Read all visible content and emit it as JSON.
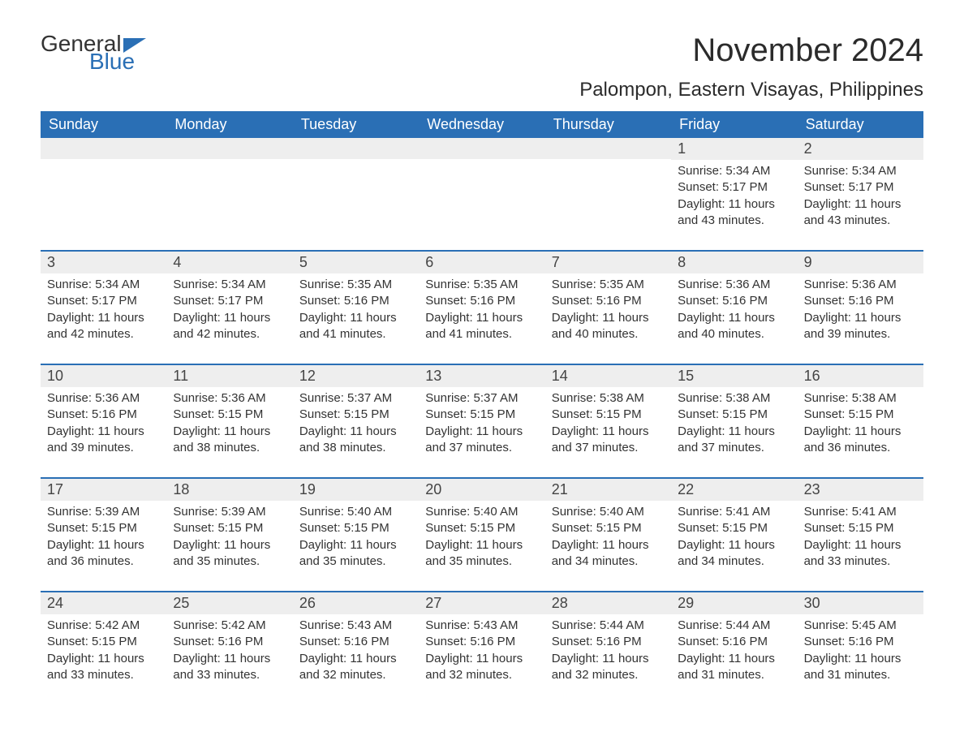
{
  "logo": {
    "word1": "General",
    "word2": "Blue",
    "text_color": "#333333",
    "accent_color": "#2a6fb5"
  },
  "title": "November 2024",
  "location": "Palompon, Eastern Visayas, Philippines",
  "colors": {
    "header_bg": "#2a6fb5",
    "header_text": "#ffffff",
    "daynum_bg": "#eeeeee",
    "body_text": "#333333",
    "divider": "#2a6fb5"
  },
  "fonts": {
    "title_size_pt": 30,
    "location_size_pt": 18,
    "header_size_pt": 14,
    "daynum_size_pt": 14,
    "body_size_pt": 11
  },
  "day_headers": [
    "Sunday",
    "Monday",
    "Tuesday",
    "Wednesday",
    "Thursday",
    "Friday",
    "Saturday"
  ],
  "labels": {
    "sunrise": "Sunrise:",
    "sunset": "Sunset:",
    "daylight": "Daylight:"
  },
  "weeks": [
    [
      {
        "blank": true
      },
      {
        "blank": true
      },
      {
        "blank": true
      },
      {
        "blank": true
      },
      {
        "blank": true
      },
      {
        "n": "1",
        "sunrise": "5:34 AM",
        "sunset": "5:17 PM",
        "daylight": "11 hours and 43 minutes."
      },
      {
        "n": "2",
        "sunrise": "5:34 AM",
        "sunset": "5:17 PM",
        "daylight": "11 hours and 43 minutes."
      }
    ],
    [
      {
        "n": "3",
        "sunrise": "5:34 AM",
        "sunset": "5:17 PM",
        "daylight": "11 hours and 42 minutes."
      },
      {
        "n": "4",
        "sunrise": "5:34 AM",
        "sunset": "5:17 PM",
        "daylight": "11 hours and 42 minutes."
      },
      {
        "n": "5",
        "sunrise": "5:35 AM",
        "sunset": "5:16 PM",
        "daylight": "11 hours and 41 minutes."
      },
      {
        "n": "6",
        "sunrise": "5:35 AM",
        "sunset": "5:16 PM",
        "daylight": "11 hours and 41 minutes."
      },
      {
        "n": "7",
        "sunrise": "5:35 AM",
        "sunset": "5:16 PM",
        "daylight": "11 hours and 40 minutes."
      },
      {
        "n": "8",
        "sunrise": "5:36 AM",
        "sunset": "5:16 PM",
        "daylight": "11 hours and 40 minutes."
      },
      {
        "n": "9",
        "sunrise": "5:36 AM",
        "sunset": "5:16 PM",
        "daylight": "11 hours and 39 minutes."
      }
    ],
    [
      {
        "n": "10",
        "sunrise": "5:36 AM",
        "sunset": "5:16 PM",
        "daylight": "11 hours and 39 minutes."
      },
      {
        "n": "11",
        "sunrise": "5:36 AM",
        "sunset": "5:15 PM",
        "daylight": "11 hours and 38 minutes."
      },
      {
        "n": "12",
        "sunrise": "5:37 AM",
        "sunset": "5:15 PM",
        "daylight": "11 hours and 38 minutes."
      },
      {
        "n": "13",
        "sunrise": "5:37 AM",
        "sunset": "5:15 PM",
        "daylight": "11 hours and 37 minutes."
      },
      {
        "n": "14",
        "sunrise": "5:38 AM",
        "sunset": "5:15 PM",
        "daylight": "11 hours and 37 minutes."
      },
      {
        "n": "15",
        "sunrise": "5:38 AM",
        "sunset": "5:15 PM",
        "daylight": "11 hours and 37 minutes."
      },
      {
        "n": "16",
        "sunrise": "5:38 AM",
        "sunset": "5:15 PM",
        "daylight": "11 hours and 36 minutes."
      }
    ],
    [
      {
        "n": "17",
        "sunrise": "5:39 AM",
        "sunset": "5:15 PM",
        "daylight": "11 hours and 36 minutes."
      },
      {
        "n": "18",
        "sunrise": "5:39 AM",
        "sunset": "5:15 PM",
        "daylight": "11 hours and 35 minutes."
      },
      {
        "n": "19",
        "sunrise": "5:40 AM",
        "sunset": "5:15 PM",
        "daylight": "11 hours and 35 minutes."
      },
      {
        "n": "20",
        "sunrise": "5:40 AM",
        "sunset": "5:15 PM",
        "daylight": "11 hours and 35 minutes."
      },
      {
        "n": "21",
        "sunrise": "5:40 AM",
        "sunset": "5:15 PM",
        "daylight": "11 hours and 34 minutes."
      },
      {
        "n": "22",
        "sunrise": "5:41 AM",
        "sunset": "5:15 PM",
        "daylight": "11 hours and 34 minutes."
      },
      {
        "n": "23",
        "sunrise": "5:41 AM",
        "sunset": "5:15 PM",
        "daylight": "11 hours and 33 minutes."
      }
    ],
    [
      {
        "n": "24",
        "sunrise": "5:42 AM",
        "sunset": "5:15 PM",
        "daylight": "11 hours and 33 minutes."
      },
      {
        "n": "25",
        "sunrise": "5:42 AM",
        "sunset": "5:16 PM",
        "daylight": "11 hours and 33 minutes."
      },
      {
        "n": "26",
        "sunrise": "5:43 AM",
        "sunset": "5:16 PM",
        "daylight": "11 hours and 32 minutes."
      },
      {
        "n": "27",
        "sunrise": "5:43 AM",
        "sunset": "5:16 PM",
        "daylight": "11 hours and 32 minutes."
      },
      {
        "n": "28",
        "sunrise": "5:44 AM",
        "sunset": "5:16 PM",
        "daylight": "11 hours and 32 minutes."
      },
      {
        "n": "29",
        "sunrise": "5:44 AM",
        "sunset": "5:16 PM",
        "daylight": "11 hours and 31 minutes."
      },
      {
        "n": "30",
        "sunrise": "5:45 AM",
        "sunset": "5:16 PM",
        "daylight": "11 hours and 31 minutes."
      }
    ]
  ]
}
